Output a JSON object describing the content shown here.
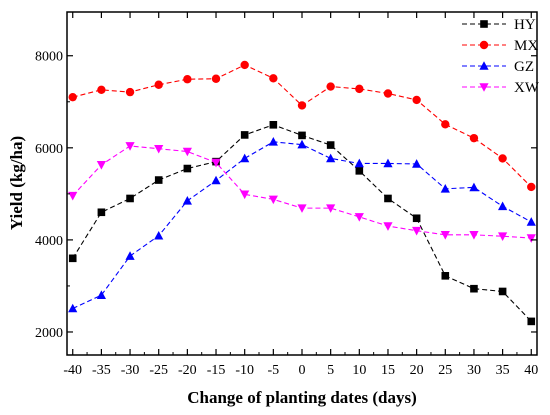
{
  "chart_data": {
    "type": "line",
    "xlabel": "Change of planting dates (days)",
    "ylabel": "Yield (kg/ha)",
    "x": [
      -40,
      -35,
      -30,
      -25,
      -20,
      -15,
      -10,
      -5,
      0,
      5,
      10,
      15,
      20,
      25,
      30,
      35,
      40
    ],
    "xlim": [
      -41,
      41
    ],
    "ylim": [
      1500,
      8950
    ],
    "yticks": [
      2000,
      4000,
      6000,
      8000
    ],
    "grid": false,
    "legend_position": "top-right",
    "series": [
      {
        "name": "HY",
        "color": "#000000",
        "marker": "square",
        "values": [
          3600,
          4600,
          4900,
          5300,
          5550,
          5700,
          6280,
          6500,
          6270,
          6060,
          5500,
          4900,
          4470,
          3220,
          2940,
          2880,
          2230
        ]
      },
      {
        "name": "MX",
        "color": "#ff0000",
        "marker": "circle",
        "values": [
          7100,
          7260,
          7210,
          7370,
          7490,
          7500,
          7800,
          7510,
          6920,
          7330,
          7280,
          7180,
          7040,
          6510,
          6210,
          5770,
          5150
        ]
      },
      {
        "name": "GZ",
        "color": "#0000ff",
        "marker": "triangle-up",
        "values": [
          2510,
          2800,
          3650,
          4090,
          4850,
          5290,
          5770,
          6130,
          6070,
          5770,
          5660,
          5660,
          5650,
          5110,
          5140,
          4730,
          4390
        ]
      },
      {
        "name": "XW",
        "color": "#ff00ff",
        "marker": "triangle-down",
        "values": [
          4960,
          5630,
          6040,
          5980,
          5920,
          5680,
          4990,
          4880,
          4690,
          4690,
          4500,
          4300,
          4200,
          4110,
          4110,
          4080,
          4040
        ]
      }
    ]
  }
}
